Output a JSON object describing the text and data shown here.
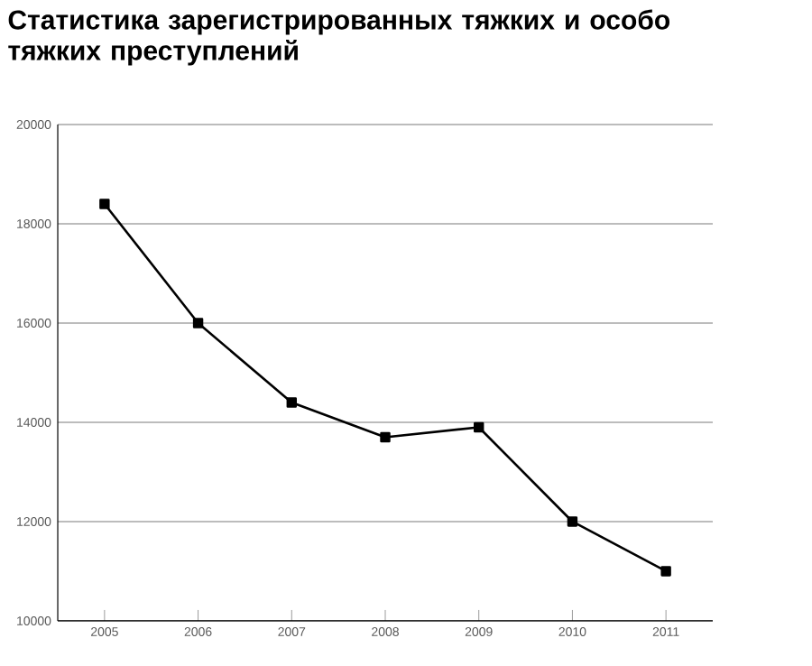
{
  "chart_data": {
    "type": "line",
    "title": "Статистика зарегистрированных тяжких и особо тяжких преступлений",
    "categories": [
      "2005",
      "2006",
      "2007",
      "2008",
      "2009",
      "2010",
      "2011"
    ],
    "values": [
      18400,
      16000,
      14400,
      13700,
      13900,
      12000,
      11000
    ],
    "color": "#000000",
    "marker": "square",
    "line_style": "solid",
    "ylim": [
      10000,
      20000
    ],
    "yticks": [
      10000,
      12000,
      14000,
      16000,
      18000,
      20000
    ],
    "grid": "y"
  }
}
